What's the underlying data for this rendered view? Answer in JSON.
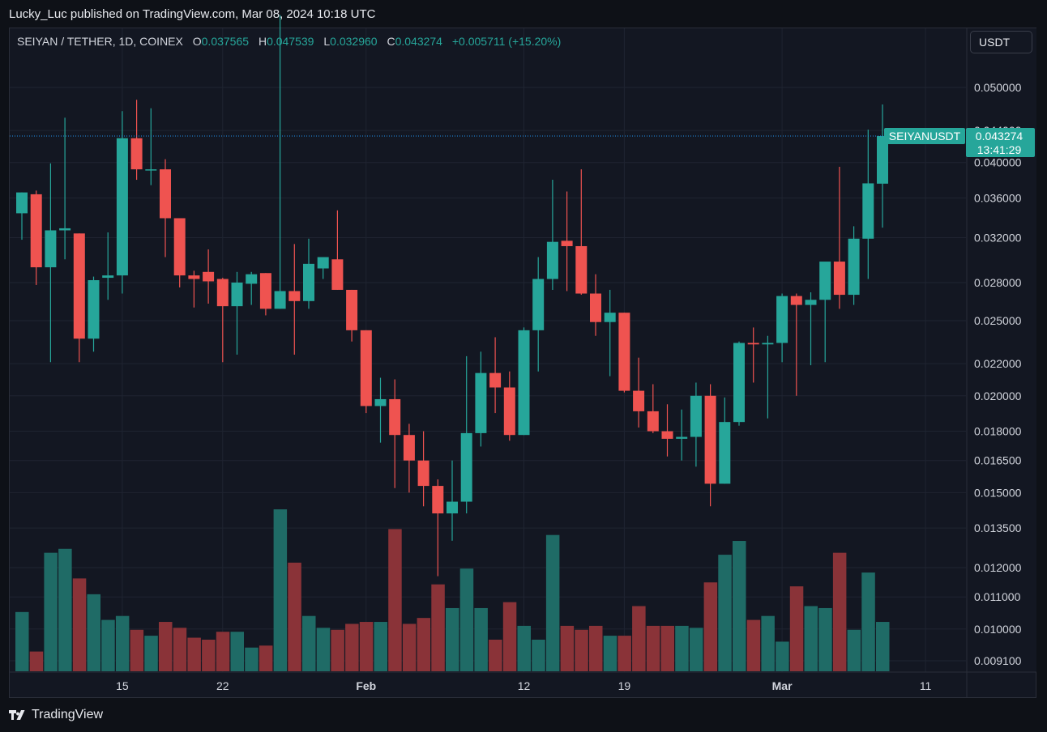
{
  "header": {
    "published": "Lucky_Luc published on TradingView.com, Mar 08, 2024 10:18 UTC"
  },
  "legend": {
    "symbol": "SEIYAN / TETHER, 1D, COINEX",
    "o_label": "O",
    "o_value": "0.037565",
    "h_label": "H",
    "h_value": "0.047539",
    "l_label": "L",
    "l_value": "0.032960",
    "c_label": "C",
    "c_value": "0.043274",
    "change": "+0.005711 (+15.20%)"
  },
  "currency_button": "USDT",
  "price_tag": {
    "symbol": "SEIYANUSDT",
    "price": "0.043274",
    "countdown": "13:41:29"
  },
  "brand": "TradingView",
  "colors": {
    "up": "#26a69a",
    "down": "#ef5350",
    "up_volume": "#1f6b66",
    "down_volume": "#8a3338",
    "price_line": "#2196f3",
    "background": "#131722",
    "grid": "#1f2431"
  },
  "chart_data": {
    "type": "candlestick",
    "symbol": "SEIYAN / TETHER",
    "interval": "1D",
    "exchange": "COINEX",
    "y_scale": "log",
    "grid": true,
    "price_line": 0.043274,
    "yticks": [
      "0.009100",
      "0.010000",
      "0.011000",
      "0.012000",
      "0.013500",
      "0.015000",
      "0.016500",
      "0.018000",
      "0.020000",
      "0.022000",
      "0.025000",
      "0.028000",
      "0.032000",
      "0.036000",
      "0.040000",
      "0.044000",
      "0.050000"
    ],
    "xticks": [
      {
        "label": "15",
        "date": "2024-01-15"
      },
      {
        "label": "22",
        "date": "2024-01-22"
      },
      {
        "label": "Feb",
        "date": "2024-02-01"
      },
      {
        "label": "12",
        "date": "2024-02-12"
      },
      {
        "label": "19",
        "date": "2024-02-19"
      },
      {
        "label": "Mar",
        "date": "2024-03-01"
      },
      {
        "label": "11",
        "date": "2024-03-11"
      }
    ],
    "candles": [
      {
        "date": "2024-01-08",
        "o": 0.0344,
        "h": 0.0366,
        "l": 0.0318,
        "c": 0.0366,
        "v": 3
      },
      {
        "date": "2024-01-09",
        "o": 0.0364,
        "h": 0.0368,
        "l": 0.0278,
        "c": 0.0293,
        "v": 1
      },
      {
        "date": "2024-01-10",
        "o": 0.0293,
        "h": 0.0399,
        "l": 0.0221,
        "c": 0.0327,
        "v": 6
      },
      {
        "date": "2024-01-11",
        "o": 0.0327,
        "h": 0.0457,
        "l": 0.03,
        "c": 0.0329,
        "v": 6.2
      },
      {
        "date": "2024-01-12",
        "o": 0.0324,
        "h": 0.0324,
        "l": 0.0221,
        "c": 0.0237,
        "v": 4.7
      },
      {
        "date": "2024-01-13",
        "o": 0.0237,
        "h": 0.0285,
        "l": 0.0228,
        "c": 0.0282,
        "v": 3.9
      },
      {
        "date": "2024-01-14",
        "o": 0.0284,
        "h": 0.0325,
        "l": 0.0266,
        "c": 0.0286,
        "v": 2.6
      },
      {
        "date": "2024-01-15",
        "o": 0.0286,
        "h": 0.0466,
        "l": 0.0271,
        "c": 0.043,
        "v": 2.8
      },
      {
        "date": "2024-01-16",
        "o": 0.043,
        "h": 0.0482,
        "l": 0.038,
        "c": 0.0392,
        "v": 2.1
      },
      {
        "date": "2024-01-17",
        "o": 0.0392,
        "h": 0.047,
        "l": 0.0374,
        "c": 0.0392,
        "v": 1.8
      },
      {
        "date": "2024-01-18",
        "o": 0.0392,
        "h": 0.0404,
        "l": 0.0302,
        "c": 0.0339,
        "v": 2.5
      },
      {
        "date": "2024-01-19",
        "o": 0.0339,
        "h": 0.0339,
        "l": 0.0276,
        "c": 0.0286,
        "v": 2.2
      },
      {
        "date": "2024-01-20",
        "o": 0.0286,
        "h": 0.029,
        "l": 0.026,
        "c": 0.0283,
        "v": 1.7
      },
      {
        "date": "2024-01-21",
        "o": 0.0289,
        "h": 0.0309,
        "l": 0.0263,
        "c": 0.0281,
        "v": 1.6
      },
      {
        "date": "2024-01-22",
        "o": 0.0283,
        "h": 0.0284,
        "l": 0.0221,
        "c": 0.0261,
        "v": 2
      },
      {
        "date": "2024-01-23",
        "o": 0.0261,
        "h": 0.0289,
        "l": 0.0226,
        "c": 0.028,
        "v": 2
      },
      {
        "date": "2024-01-24",
        "o": 0.0279,
        "h": 0.0289,
        "l": 0.0262,
        "c": 0.0287,
        "v": 1.2
      },
      {
        "date": "2024-01-25",
        "o": 0.0288,
        "h": 0.0288,
        "l": 0.0254,
        "c": 0.0259,
        "v": 1.3
      },
      {
        "date": "2024-01-26",
        "o": 0.0259,
        "h": 0.062,
        "l": 0.0259,
        "c": 0.0273,
        "v": 8.2
      },
      {
        "date": "2024-01-27",
        "o": 0.0273,
        "h": 0.0314,
        "l": 0.0226,
        "c": 0.0265,
        "v": 5.5
      },
      {
        "date": "2024-01-28",
        "o": 0.0265,
        "h": 0.0319,
        "l": 0.0259,
        "c": 0.0296,
        "v": 2.8
      },
      {
        "date": "2024-01-29",
        "o": 0.0292,
        "h": 0.0302,
        "l": 0.0283,
        "c": 0.0302,
        "v": 2.2
      },
      {
        "date": "2024-01-30",
        "o": 0.03,
        "h": 0.0347,
        "l": 0.0274,
        "c": 0.0274,
        "v": 2.1
      },
      {
        "date": "2024-01-31",
        "o": 0.0274,
        "h": 0.0274,
        "l": 0.0235,
        "c": 0.0243,
        "v": 2.4
      },
      {
        "date": "2024-02-01",
        "o": 0.0243,
        "h": 0.0243,
        "l": 0.019,
        "c": 0.0194,
        "v": 2.5
      },
      {
        "date": "2024-02-02",
        "o": 0.0194,
        "h": 0.0211,
        "l": 0.0174,
        "c": 0.0198,
        "v": 2.5
      },
      {
        "date": "2024-02-03",
        "o": 0.0198,
        "h": 0.021,
        "l": 0.0152,
        "c": 0.0178,
        "v": 7.2
      },
      {
        "date": "2024-02-04",
        "o": 0.0178,
        "h": 0.0184,
        "l": 0.015,
        "c": 0.0165,
        "v": 2.4
      },
      {
        "date": "2024-02-05",
        "o": 0.0165,
        "h": 0.018,
        "l": 0.0144,
        "c": 0.0153,
        "v": 2.7
      },
      {
        "date": "2024-02-06",
        "o": 0.0153,
        "h": 0.0156,
        "l": 0.0117,
        "c": 0.0141,
        "v": 4.4
      },
      {
        "date": "2024-02-07",
        "o": 0.0141,
        "h": 0.0165,
        "l": 0.013,
        "c": 0.0146,
        "v": 3.2
      },
      {
        "date": "2024-02-08",
        "o": 0.0146,
        "h": 0.0225,
        "l": 0.0141,
        "c": 0.0179,
        "v": 5.2
      },
      {
        "date": "2024-02-09",
        "o": 0.0179,
        "h": 0.0228,
        "l": 0.0172,
        "c": 0.0214,
        "v": 3.2
      },
      {
        "date": "2024-02-10",
        "o": 0.0214,
        "h": 0.0238,
        "l": 0.019,
        "c": 0.0205,
        "v": 1.6
      },
      {
        "date": "2024-02-11",
        "o": 0.0205,
        "h": 0.0215,
        "l": 0.0175,
        "c": 0.0178,
        "v": 3.5
      },
      {
        "date": "2024-02-12",
        "o": 0.0178,
        "h": 0.0245,
        "l": 0.0178,
        "c": 0.0243,
        "v": 2.3
      },
      {
        "date": "2024-02-13",
        "o": 0.0243,
        "h": 0.0302,
        "l": 0.0215,
        "c": 0.0283,
        "v": 1.6
      },
      {
        "date": "2024-02-14",
        "o": 0.0283,
        "h": 0.038,
        "l": 0.0274,
        "c": 0.0316,
        "v": 6.9
      },
      {
        "date": "2024-02-15",
        "o": 0.0317,
        "h": 0.0367,
        "l": 0.0273,
        "c": 0.0312,
        "v": 2.3
      },
      {
        "date": "2024-02-16",
        "o": 0.0312,
        "h": 0.0392,
        "l": 0.027,
        "c": 0.0271,
        "v": 2.1
      },
      {
        "date": "2024-02-17",
        "o": 0.0271,
        "h": 0.0287,
        "l": 0.0239,
        "c": 0.0249,
        "v": 2.3
      },
      {
        "date": "2024-02-18",
        "o": 0.0249,
        "h": 0.0274,
        "l": 0.0212,
        "c": 0.0256,
        "v": 1.8
      },
      {
        "date": "2024-02-19",
        "o": 0.0256,
        "h": 0.0256,
        "l": 0.0202,
        "c": 0.0203,
        "v": 1.8
      },
      {
        "date": "2024-02-20",
        "o": 0.0203,
        "h": 0.0224,
        "l": 0.0182,
        "c": 0.0191,
        "v": 3.3
      },
      {
        "date": "2024-02-21",
        "o": 0.0191,
        "h": 0.0207,
        "l": 0.0179,
        "c": 0.018,
        "v": 2.3
      },
      {
        "date": "2024-02-22",
        "o": 0.018,
        "h": 0.0195,
        "l": 0.0167,
        "c": 0.0176,
        "v": 2.3
      },
      {
        "date": "2024-02-23",
        "o": 0.0176,
        "h": 0.0192,
        "l": 0.0165,
        "c": 0.0177,
        "v": 2.3
      },
      {
        "date": "2024-02-24",
        "o": 0.0177,
        "h": 0.0208,
        "l": 0.0162,
        "c": 0.02,
        "v": 2.2
      },
      {
        "date": "2024-02-25",
        "o": 0.02,
        "h": 0.0207,
        "l": 0.0144,
        "c": 0.0154,
        "v": 4.5
      },
      {
        "date": "2024-02-26",
        "o": 0.0154,
        "h": 0.0199,
        "l": 0.0154,
        "c": 0.0185,
        "v": 5.9
      },
      {
        "date": "2024-02-27",
        "o": 0.0185,
        "h": 0.0235,
        "l": 0.0183,
        "c": 0.0234,
        "v": 6.6
      },
      {
        "date": "2024-02-28",
        "o": 0.0234,
        "h": 0.0245,
        "l": 0.0208,
        "c": 0.0233,
        "v": 2.6
      },
      {
        "date": "2024-02-29",
        "o": 0.0233,
        "h": 0.0239,
        "l": 0.0187,
        "c": 0.0234,
        "v": 2.8
      },
      {
        "date": "2024-03-01",
        "o": 0.0234,
        "h": 0.0271,
        "l": 0.0221,
        "c": 0.0269,
        "v": 1.5
      },
      {
        "date": "2024-03-02",
        "o": 0.0269,
        "h": 0.0271,
        "l": 0.02,
        "c": 0.0262,
        "v": 4.3
      },
      {
        "date": "2024-03-03",
        "o": 0.0262,
        "h": 0.0272,
        "l": 0.0219,
        "c": 0.0266,
        "v": 3.3
      },
      {
        "date": "2024-03-04",
        "o": 0.0266,
        "h": 0.0295,
        "l": 0.0221,
        "c": 0.0298,
        "v": 3.2
      },
      {
        "date": "2024-03-05",
        "o": 0.0298,
        "h": 0.0395,
        "l": 0.0259,
        "c": 0.027,
        "v": 6
      },
      {
        "date": "2024-03-06",
        "o": 0.027,
        "h": 0.0331,
        "l": 0.0262,
        "c": 0.0319,
        "v": 2.1
      },
      {
        "date": "2024-03-07",
        "o": 0.0319,
        "h": 0.0441,
        "l": 0.0283,
        "c": 0.0376,
        "v": 5
      },
      {
        "date": "2024-03-08",
        "o": 0.037565,
        "h": 0.047539,
        "l": 0.03296,
        "c": 0.043274,
        "v": 2.5
      }
    ]
  }
}
